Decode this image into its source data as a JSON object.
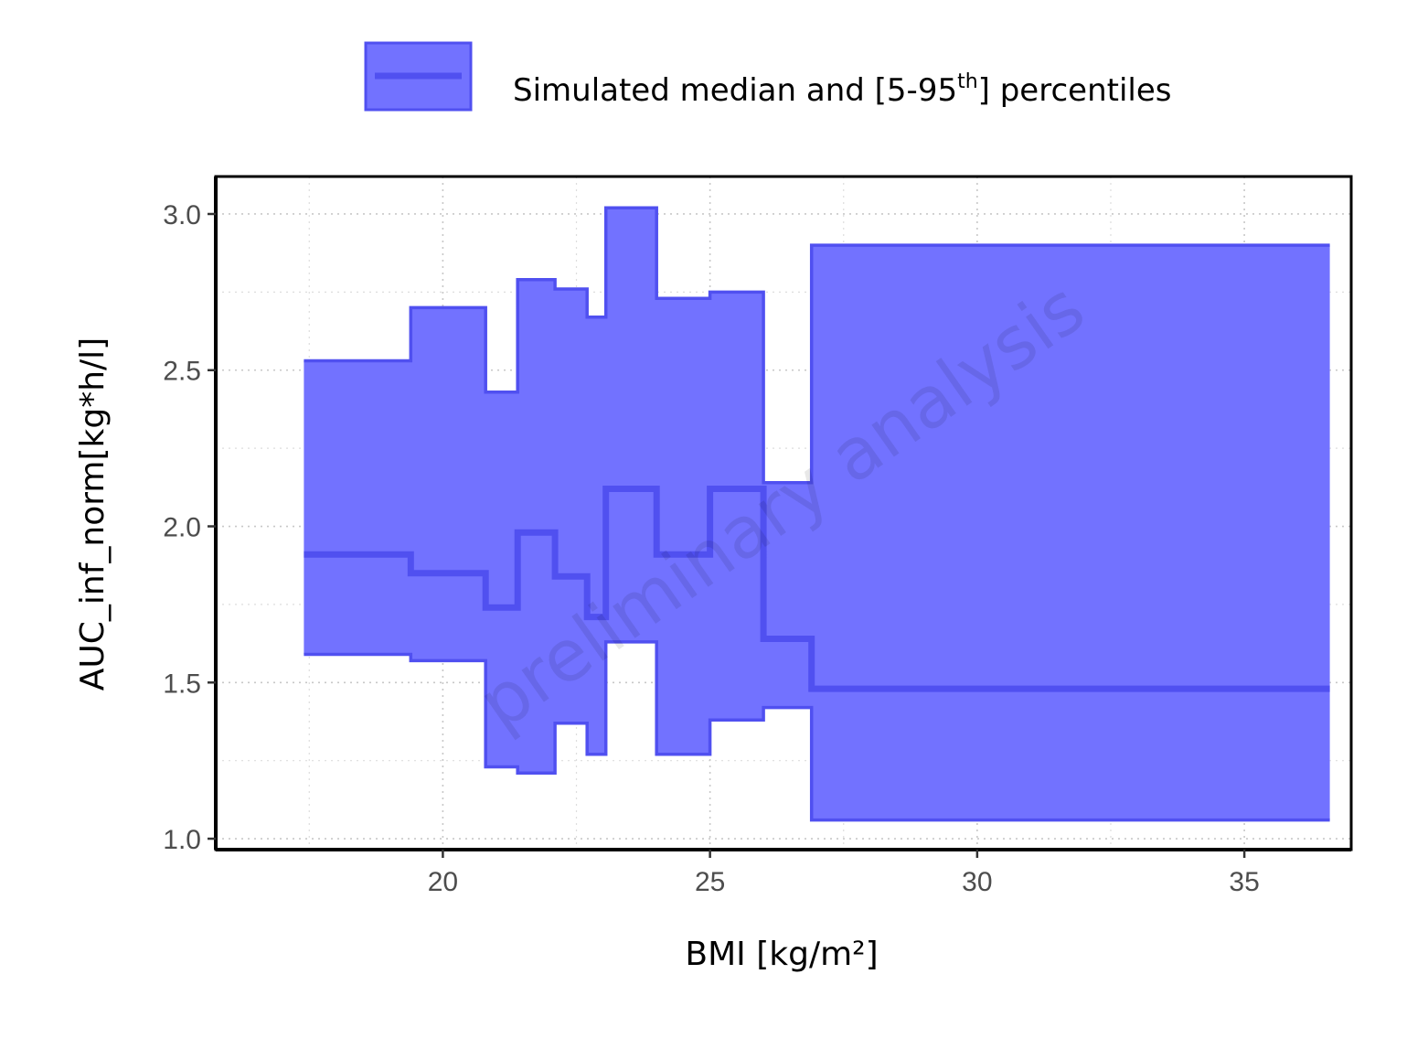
{
  "legend": {
    "label_pre": "Simulated median and [5-95",
    "label_sup": "th",
    "label_post": "] percentiles",
    "position": "top"
  },
  "watermark": "preliminary analysis",
  "colors": {
    "band_fill": "#7272ff",
    "band_stroke": "#5050f0",
    "median": "#5050f0"
  },
  "chart_data": {
    "type": "area",
    "xlabel": "BMI [kg/m²]",
    "ylabel": "AUC_inf_norm[kg*h/l]",
    "xlim": [
      15.75,
      37.0
    ],
    "ylim": [
      0.965,
      3.12
    ],
    "x_ticks": [
      20,
      25,
      30,
      35
    ],
    "x_tick_labels": [
      "20",
      "25",
      "30",
      "35"
    ],
    "y_ticks": [
      1.0,
      1.5,
      2.0,
      2.5,
      3.0
    ],
    "y_tick_labels": [
      "1.0",
      "1.5",
      "2.0",
      "2.5",
      "3.0"
    ],
    "grid": true,
    "step": "post",
    "series": [
      {
        "name": "Simulated median and [5-95th] percentiles",
        "x": [
          17.4,
          19.4,
          20.8,
          21.4,
          22.1,
          22.7,
          23.05,
          24.0,
          25.0,
          26.0,
          26.9,
          36.6
        ],
        "median": [
          1.91,
          1.85,
          1.74,
          1.98,
          1.84,
          1.71,
          2.12,
          1.91,
          2.12,
          1.64,
          1.48,
          1.48
        ],
        "p05": [
          1.59,
          1.57,
          1.23,
          1.21,
          1.37,
          1.27,
          1.63,
          1.27,
          1.38,
          1.42,
          1.06,
          1.06
        ],
        "p95": [
          2.53,
          2.7,
          2.43,
          2.79,
          2.76,
          2.67,
          3.02,
          2.73,
          2.75,
          2.14,
          2.9,
          2.9
        ]
      }
    ]
  }
}
